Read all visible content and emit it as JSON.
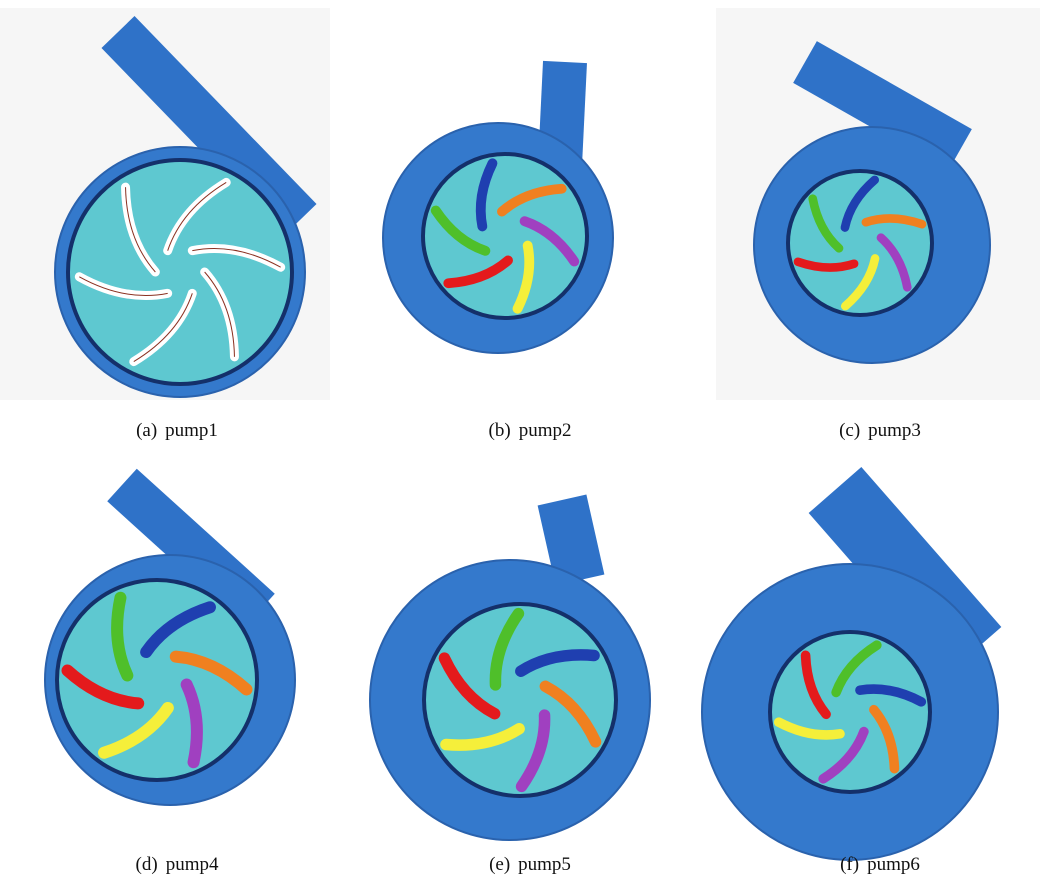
{
  "figure": {
    "panels": [
      {
        "label": "(a)",
        "caption": "pump1"
      },
      {
        "label": "(b)",
        "caption": "pump2"
      },
      {
        "label": "(c)",
        "caption": "pump3"
      },
      {
        "label": "(d)",
        "caption": "pump4"
      },
      {
        "label": "(e)",
        "caption": "pump5"
      },
      {
        "label": "(f)",
        "caption": "pump6"
      }
    ]
  }
}
